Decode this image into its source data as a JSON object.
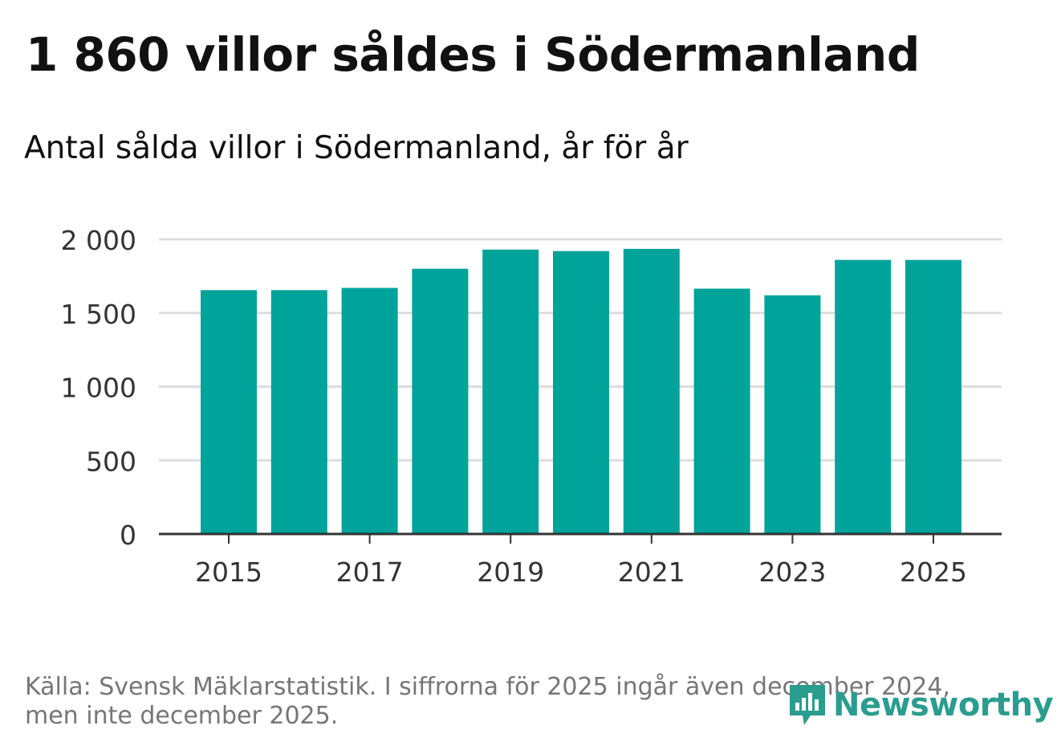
{
  "title": "1 860 villor såldes i Södermanland",
  "subtitle": "Antal sålda villor i Södermanland, år för år",
  "footer": {
    "line1": "Källa: Svensk Mäklarstatistik. I siffrorna för 2025 ingår även december 2024,",
    "line2": "men inte december 2025."
  },
  "brand": {
    "name": "Newsworthy",
    "icon": "newsworthy-chart-logo-icon",
    "color": "#2a9d8f"
  },
  "colors": {
    "bar": "#00a39a",
    "grid": "#dddddd",
    "axis": "#333333",
    "text": "#111111"
  },
  "chart_data": {
    "type": "bar",
    "title": "1 860 villor såldes i Södermanland",
    "subtitle": "Antal sålda villor i Södermanland, år för år",
    "xlabel": "",
    "ylabel": "",
    "categories": [
      "2015",
      "2016",
      "2017",
      "2018",
      "2019",
      "2020",
      "2021",
      "2022",
      "2023",
      "2024",
      "2025"
    ],
    "values": [
      1655,
      1655,
      1670,
      1800,
      1930,
      1920,
      1935,
      1665,
      1620,
      1860,
      1860
    ],
    "ylim": [
      0,
      2000
    ],
    "yticks": [
      0,
      500,
      1000,
      1500,
      2000
    ],
    "ytick_labels": [
      "0",
      "500",
      "1 000",
      "1 500",
      "2 000"
    ],
    "xtick_labels": [
      "2015",
      "2017",
      "2019",
      "2021",
      "2023",
      "2025"
    ],
    "grid": true,
    "legend": "none"
  }
}
